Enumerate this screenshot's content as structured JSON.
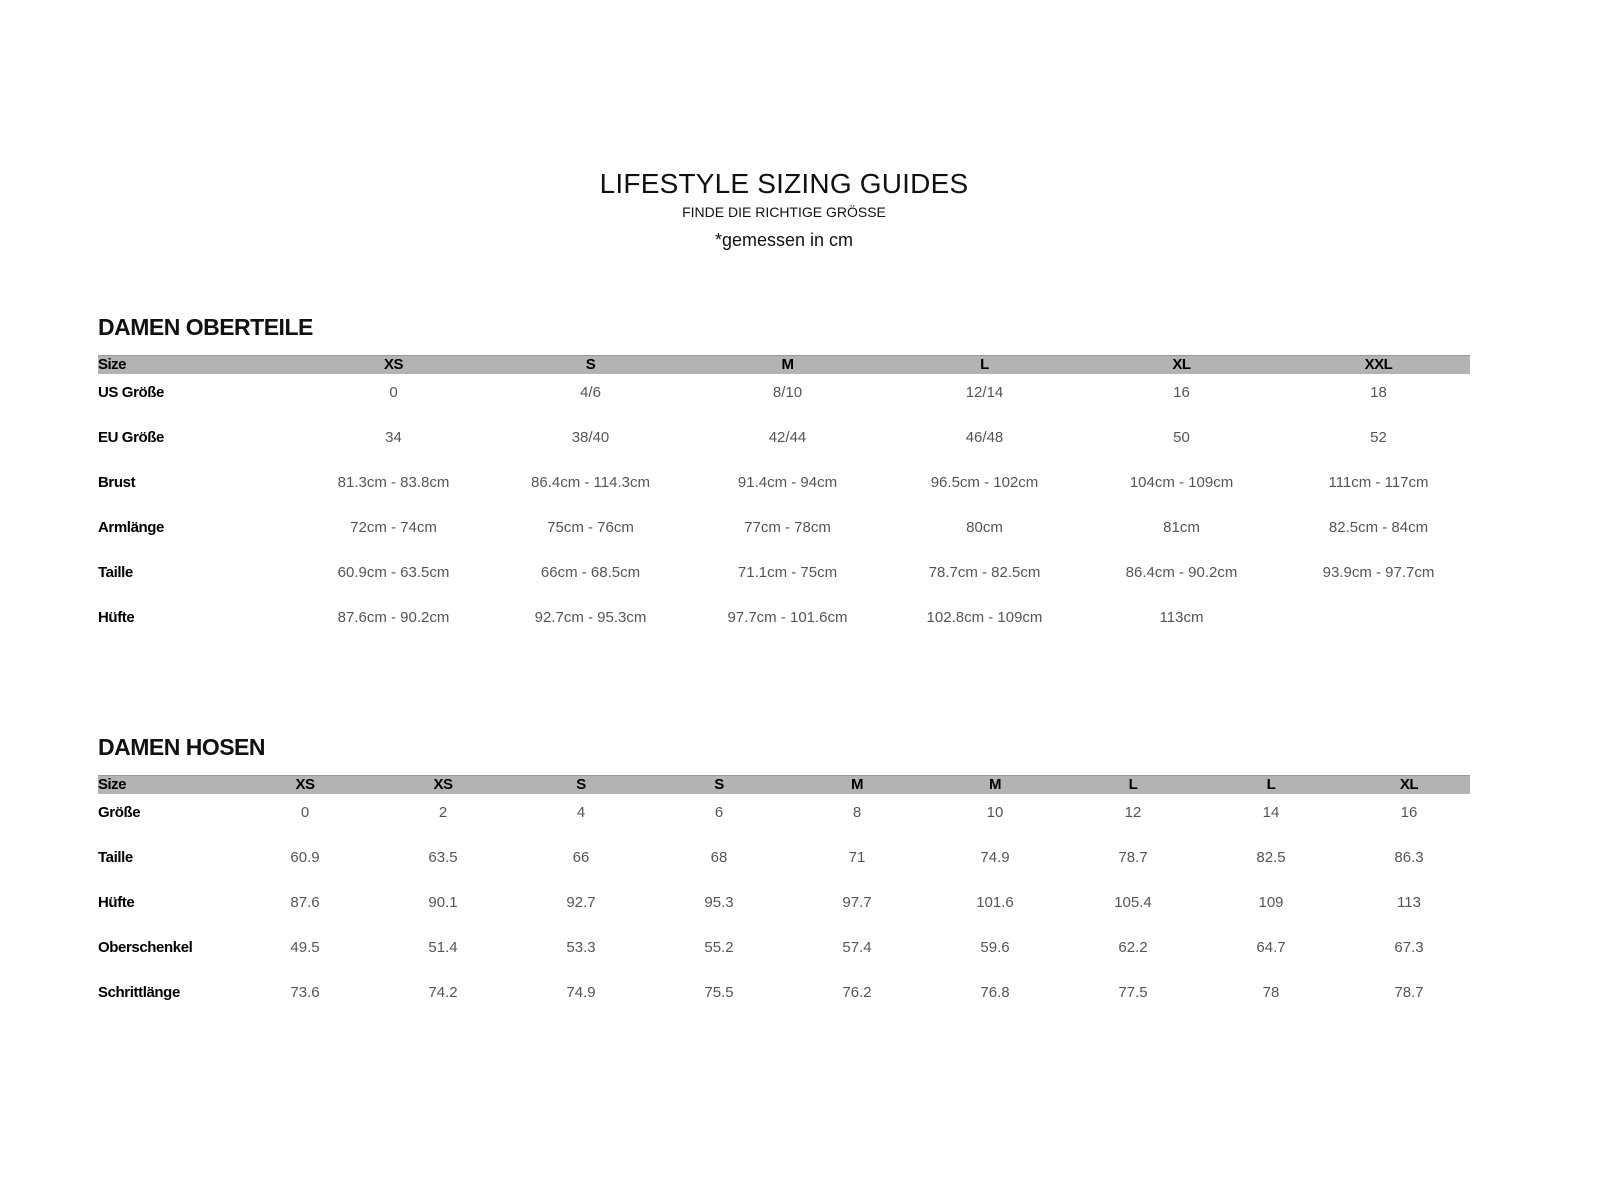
{
  "header": {
    "title": "LIFESTYLE SIZING GUIDES",
    "subtitle": "FINDE DIE RICHTIGE GRÖSSE",
    "note": "*gemessen in cm"
  },
  "tables": [
    {
      "title": "DAMEN OBERTEILE",
      "header": [
        "Size",
        "XS",
        "S",
        "M",
        "L",
        "XL",
        "XXL"
      ],
      "rows": [
        [
          "US Größe",
          "0",
          "4/6",
          "8/10",
          "12/14",
          "16",
          "18"
        ],
        [
          "EU Größe",
          "34",
          "38/40",
          "42/44",
          "46/48",
          "50",
          "52"
        ],
        [
          "Brust",
          "81.3cm - 83.8cm",
          "86.4cm - 114.3cm",
          "91.4cm - 94cm",
          "96.5cm - 102cm",
          "104cm - 109cm",
          "111cm - 117cm"
        ],
        [
          "Armlänge",
          "72cm - 74cm",
          "75cm - 76cm",
          "77cm - 78cm",
          "80cm",
          "81cm",
          "82.5cm - 84cm"
        ],
        [
          "Taille",
          "60.9cm - 63.5cm",
          "66cm - 68.5cm",
          "71.1cm - 75cm",
          "78.7cm - 82.5cm",
          "86.4cm - 90.2cm",
          "93.9cm - 97.7cm"
        ],
        [
          "Hüfte",
          "87.6cm - 90.2cm",
          "92.7cm - 95.3cm",
          "97.7cm - 101.6cm",
          "102.8cm - 109cm",
          "113cm",
          ""
        ]
      ]
    },
    {
      "title": "DAMEN HOSEN",
      "header": [
        "Size",
        "XS",
        "XS",
        "S",
        "S",
        "M",
        "M",
        "L",
        "L",
        "XL"
      ],
      "rows": [
        [
          "Größe",
          "0",
          "2",
          "4",
          "6",
          "8",
          "10",
          "12",
          "14",
          "16"
        ],
        [
          "Taille",
          "60.9",
          "63.5",
          "66",
          "68",
          "71",
          "74.9",
          "78.7",
          "82.5",
          "86.3"
        ],
        [
          "Hüfte",
          "87.6",
          "90.1",
          "92.7",
          "95.3",
          "97.7",
          "101.6",
          "105.4",
          "109",
          "113"
        ],
        [
          "Oberschenkel",
          "49.5",
          "51.4",
          "53.3",
          "55.2",
          "57.4",
          "59.6",
          "62.2",
          "64.7",
          "67.3"
        ],
        [
          "Schrittlänge",
          "73.6",
          "74.2",
          "74.9",
          "75.5",
          "76.2",
          "76.8",
          "77.5",
          "78",
          "78.7"
        ]
      ]
    }
  ]
}
